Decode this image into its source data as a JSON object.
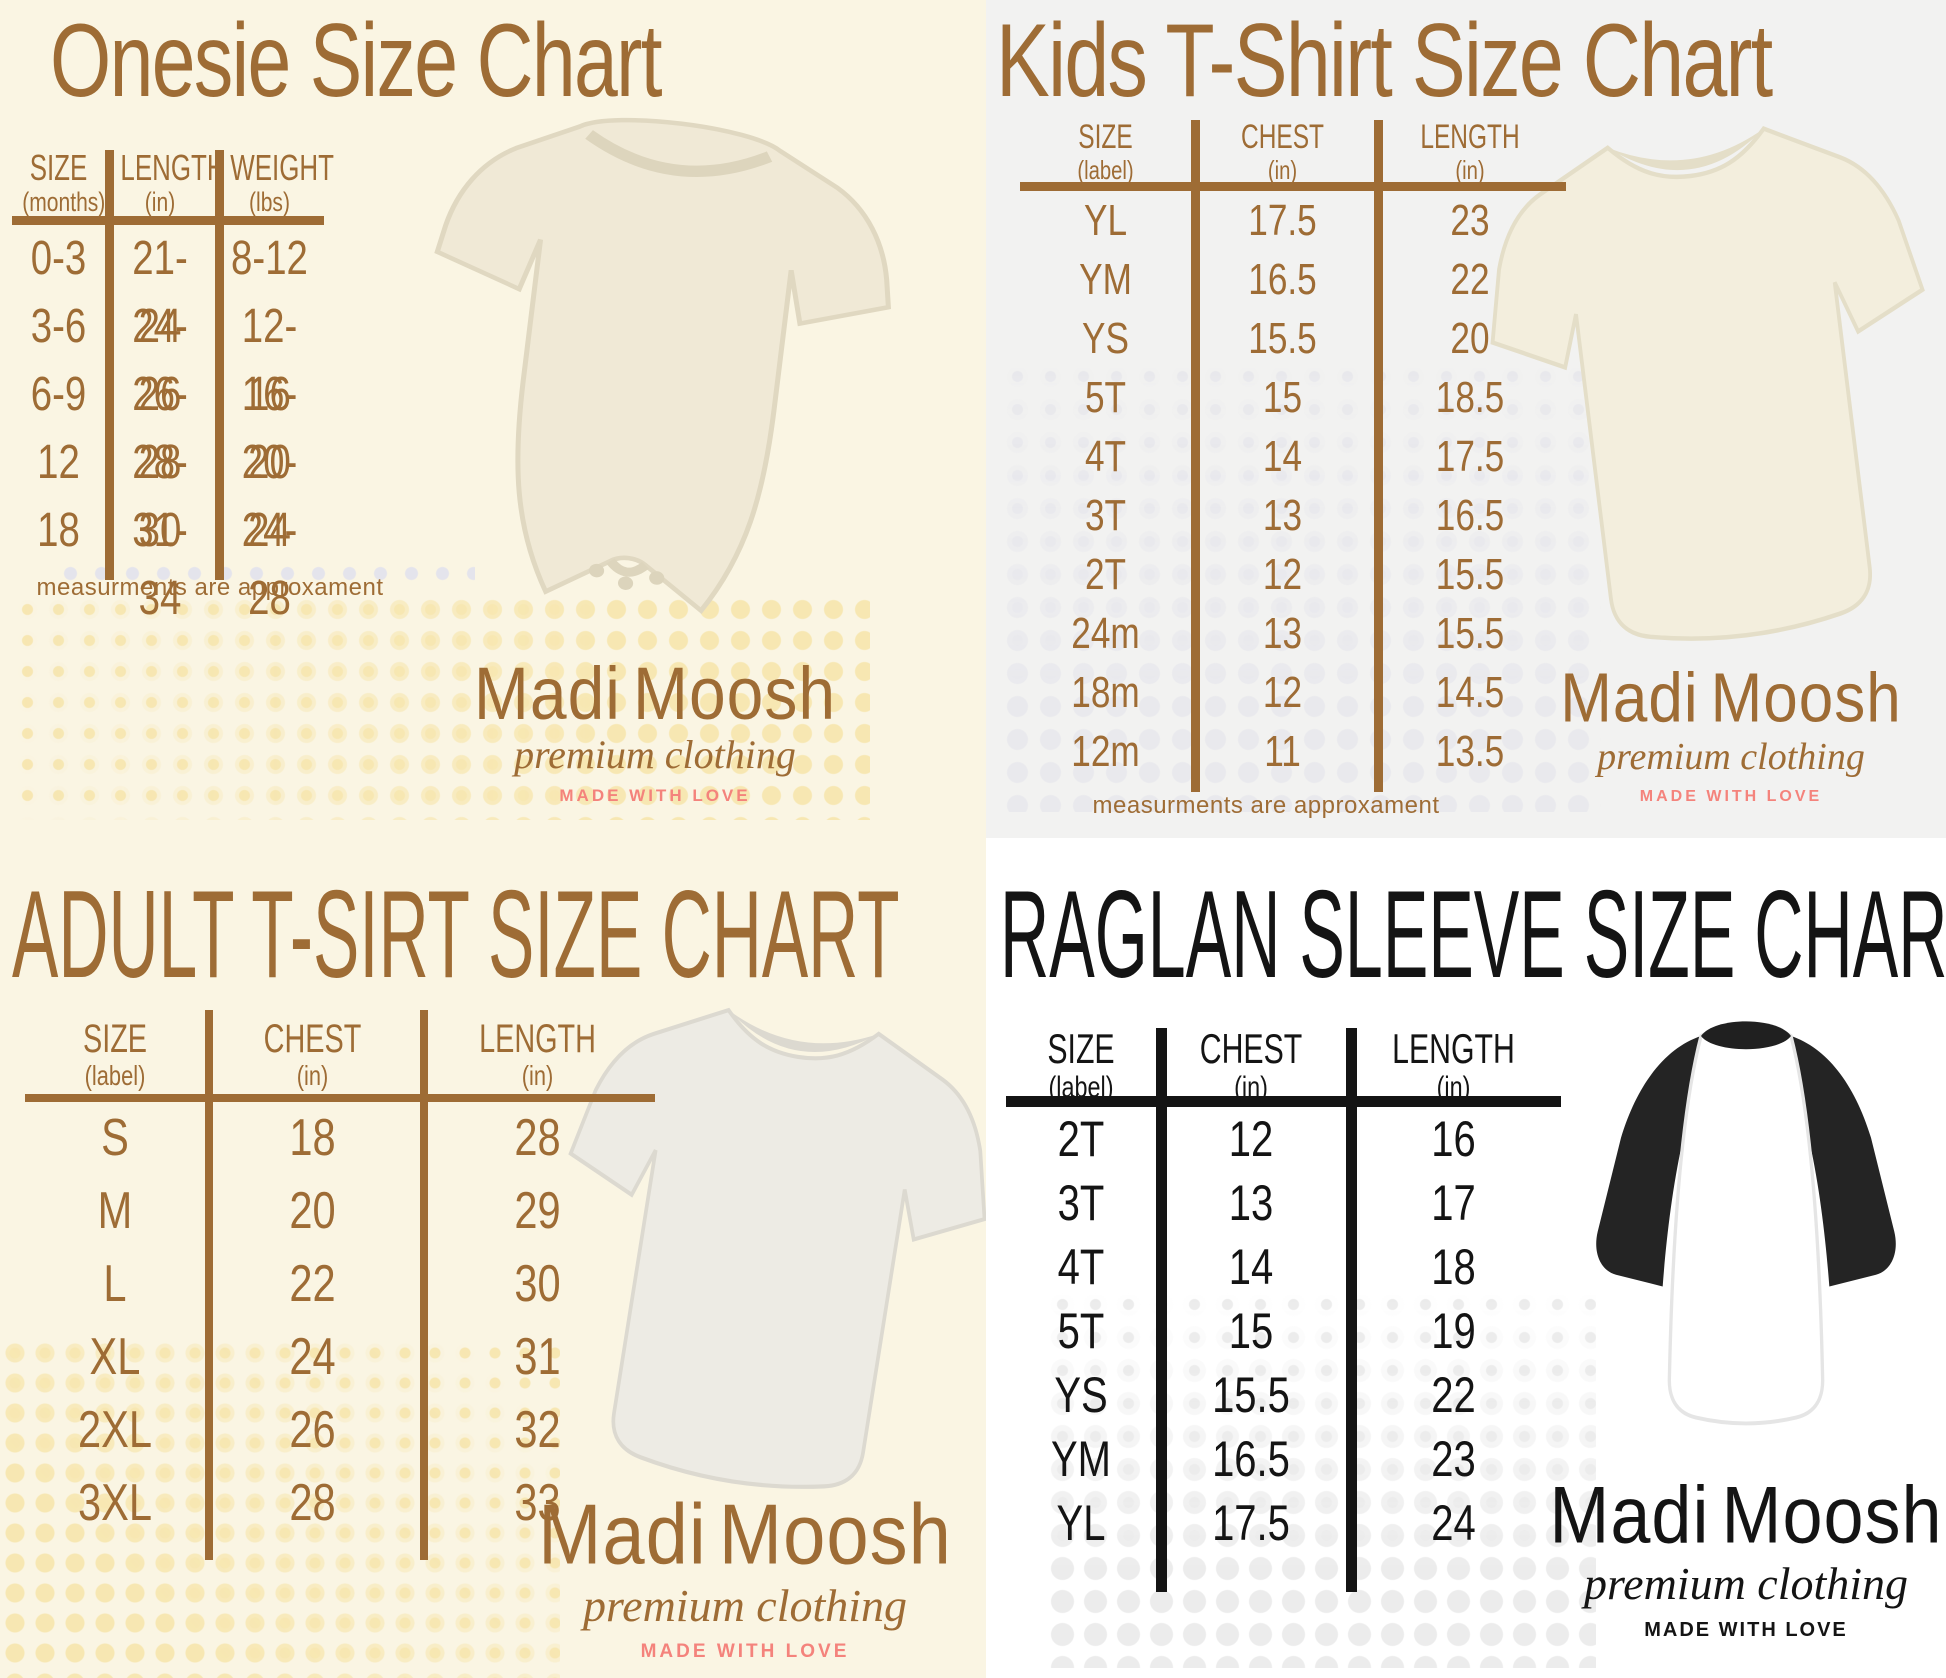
{
  "brand": {
    "name": "MadiMoosh",
    "name_first": "Madi",
    "name_second": "Moosh",
    "tagline": "premium clothing",
    "made_with": "MADE WITH LOVE"
  },
  "colors": {
    "brown": "#9e6c35",
    "pink": "#f4837c",
    "cream_bg": "#faf5e3",
    "gray_bg": "#f2f2f1",
    "black": "#141414",
    "dot_yellow": "#f7e7b2",
    "dot_gray": "#e9e9ed"
  },
  "charts": {
    "onesie": {
      "title": "Onesie Size Chart",
      "columns": [
        [
          "SIZE",
          "(months)"
        ],
        [
          "LENGTH",
          "(in)"
        ],
        [
          "WEIGHT",
          "(lbs)"
        ]
      ],
      "rows": [
        [
          "0-3",
          "21-24",
          "8-12"
        ],
        [
          "3-6",
          "24-26",
          "12-16"
        ],
        [
          "6-9",
          "26-28",
          "16-20"
        ],
        [
          "12",
          "28-30",
          "20-24"
        ],
        [
          "18",
          "31-34",
          "24-28"
        ]
      ],
      "note": "measurments are approxament",
      "garment": "onesie"
    },
    "kids": {
      "title": "Kids T-Shirt Size Chart",
      "columns": [
        [
          "SIZE",
          "(label)"
        ],
        [
          "CHEST",
          "(in)"
        ],
        [
          "LENGTH",
          "(in)"
        ]
      ],
      "rows": [
        [
          "YL",
          "17.5",
          "23"
        ],
        [
          "YM",
          "16.5",
          "22"
        ],
        [
          "YS",
          "15.5",
          "20"
        ],
        [
          "5T",
          "15",
          "18.5"
        ],
        [
          "4T",
          "14",
          "17.5"
        ],
        [
          "3T",
          "13",
          "16.5"
        ],
        [
          "2T",
          "12",
          "15.5"
        ],
        [
          "24m",
          "13",
          "15.5"
        ],
        [
          "18m",
          "12",
          "14.5"
        ],
        [
          "12m",
          "11",
          "13.5"
        ]
      ],
      "note": "measurments are approxament",
      "garment": "kids-tshirt"
    },
    "adult": {
      "title": "ADULT T-SIRT SIZE CHART",
      "columns": [
        [
          "SIZE",
          "(label)"
        ],
        [
          "CHEST",
          "(in)"
        ],
        [
          "LENGTH",
          "(in)"
        ]
      ],
      "rows": [
        [
          "S",
          "18",
          "28"
        ],
        [
          "M",
          "20",
          "29"
        ],
        [
          "L",
          "22",
          "30"
        ],
        [
          "XL",
          "24",
          "31"
        ],
        [
          "2XL",
          "26",
          "32"
        ],
        [
          "3XL",
          "28",
          "33"
        ]
      ],
      "garment": "adult-tshirt"
    },
    "raglan": {
      "title": "RAGLAN SLEEVE SIZE CHART",
      "columns": [
        [
          "SIZE",
          "(label)"
        ],
        [
          "CHEST",
          "(in)"
        ],
        [
          "LENGTH",
          "(in)"
        ]
      ],
      "rows": [
        [
          "2T",
          "12",
          "16"
        ],
        [
          "3T",
          "13",
          "17"
        ],
        [
          "4T",
          "14",
          "18"
        ],
        [
          "5T",
          "15",
          "19"
        ],
        [
          "YS",
          "15.5",
          "22"
        ],
        [
          "YM",
          "16.5",
          "23"
        ],
        [
          "YL",
          "17.5",
          "24"
        ]
      ],
      "garment": "raglan-tee"
    }
  }
}
